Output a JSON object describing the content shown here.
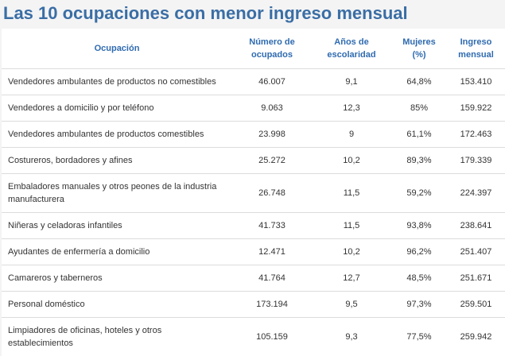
{
  "title": "Las 10 ocupaciones con menor ingreso mensual",
  "table": {
    "header": [
      "Ocupación",
      "Número de ocupados",
      "Años de escolaridad",
      "Mujeres (%)",
      "Ingreso mensual"
    ],
    "rows": [
      [
        "Vendedores ambulantes de productos no comestibles",
        "46.007",
        "9,1",
        "64,8%",
        "153.410"
      ],
      [
        "Vendedores a domicilio y por teléfono",
        "9.063",
        "12,3",
        "85%",
        "159.922"
      ],
      [
        "Vendedores ambulantes de productos comestibles",
        "23.998",
        "9",
        "61,1%",
        "172.463"
      ],
      [
        "Costureros, bordadores y afines",
        "25.272",
        "10,2",
        "89,3%",
        "179.339"
      ],
      [
        "Embaladores manuales y otros peones de la industria manufacturera",
        "26.748",
        "11,5",
        "59,2%",
        "224.397"
      ],
      [
        "Niñeras y celadoras infantiles",
        "41.733",
        "11,5",
        "93,8%",
        "238.641"
      ],
      [
        "Ayudantes de enfermería a domicilio",
        "12.471",
        "10,2",
        "96,2%",
        "251.407"
      ],
      [
        "Camareros y taberneros",
        "41.764",
        "12,7",
        "48,5%",
        "251.671"
      ],
      [
        "Personal doméstico",
        "173.194",
        "9,5",
        "97,3%",
        "259.501"
      ],
      [
        "Limpiadores de oficinas, hoteles y otros establecimientos",
        "105.159",
        "9,3",
        "77,5%",
        "259.942"
      ]
    ]
  }
}
